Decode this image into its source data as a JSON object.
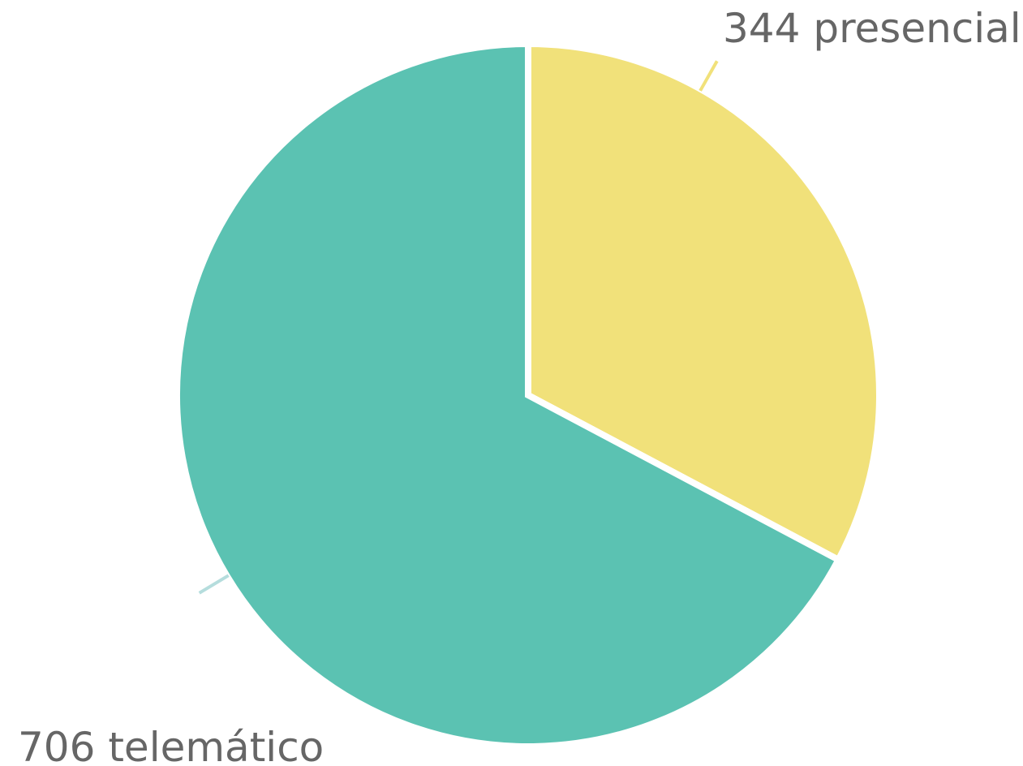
{
  "chart_data": {
    "type": "pie",
    "slices": [
      {
        "label": "presencial",
        "value": 344,
        "display": "344 presencial",
        "color": "#F1E17A"
      },
      {
        "label": "telemático",
        "value": 706,
        "display": "706 telemático",
        "color": "#5BC2B2"
      }
    ],
    "leader_colors": [
      "#F1E17A",
      "#B5DDDD"
    ],
    "label_color": "#666666",
    "start_angle": "12 o'clock",
    "direction": "clockwise"
  }
}
